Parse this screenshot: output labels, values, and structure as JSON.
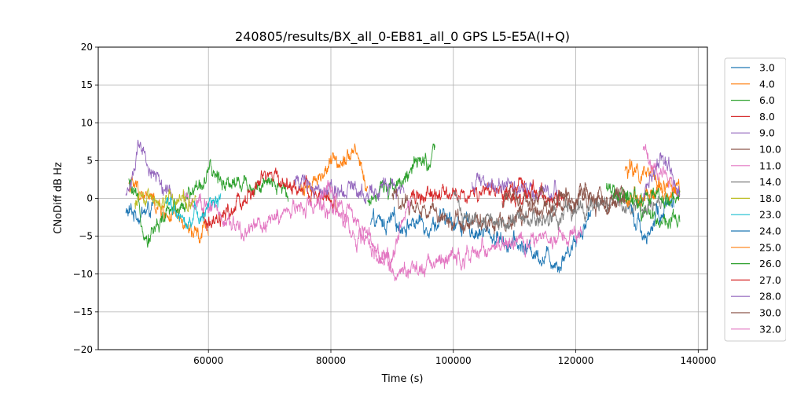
{
  "chart_data": {
    "type": "line",
    "title": "240805/results/BX_all_0-EB81_all_0 GPS L5-E5A(I+Q)",
    "xlabel": "Time (s)",
    "ylabel": "CNoDiff dB Hz",
    "xlim": [
      42000,
      141500
    ],
    "ylim": [
      -20,
      20
    ],
    "xticks": [
      60000,
      80000,
      100000,
      120000,
      140000
    ],
    "xtick_labels": [
      "60000",
      "80000",
      "100000",
      "120000",
      "140000"
    ],
    "yticks": [
      -20,
      -15,
      -10,
      -5,
      0,
      5,
      10,
      15,
      20
    ],
    "ytick_labels": [
      "−20",
      "−15",
      "−10",
      "−5",
      "0",
      "5",
      "10",
      "15",
      "20"
    ],
    "grid": true,
    "legend_position": "right, outside plot",
    "series": [
      {
        "name": "3.0",
        "color": "#1f77b4",
        "segments": [
          [
            46500,
            51000
          ],
          [
            86500,
            122500
          ]
        ],
        "x": [
          46500,
          50000,
          51000,
          86500,
          100000,
          117500,
          122500
        ],
        "y": [
          -2,
          -1.8,
          -1,
          -3.5,
          -3.0,
          -8.3,
          -2
        ]
      },
      {
        "name": "4.0",
        "color": "#ff7f0e",
        "segments": [
          [
            47000,
            60000
          ],
          [
            75000,
            86000
          ],
          [
            128000,
            137000
          ]
        ],
        "x": [
          47000,
          58500,
          60000,
          75000,
          84000,
          86000,
          128000,
          137000
        ],
        "y": [
          2,
          -5.5,
          -3.7,
          1,
          7,
          1,
          4,
          1
        ]
      },
      {
        "name": "6.0",
        "color": "#2ca02c",
        "segments": [
          [
            47000,
            73000
          ],
          [
            86000,
            97000
          ],
          [
            125000,
            137000
          ]
        ],
        "x": [
          47000,
          50000,
          60000,
          73000,
          86000,
          97000,
          125000,
          137000
        ],
        "y": [
          2,
          -4.8,
          3,
          1,
          0,
          5.5,
          1,
          -4
        ]
      },
      {
        "name": "8.0",
        "color": "#d62728",
        "segments": [
          [
            59000,
            81000
          ],
          [
            93000,
            112000
          ]
        ],
        "x": [
          59000,
          61000,
          70000,
          81000,
          93000,
          112000
        ],
        "y": [
          -3,
          -4,
          3,
          -1,
          0,
          1
        ]
      },
      {
        "name": "9.0",
        "color": "#9467bd",
        "segments": [
          [
            46500,
            54000
          ],
          [
            74000,
            92000
          ],
          [
            103000,
            117000
          ]
        ],
        "x": [
          46500,
          48500,
          54000,
          74000,
          92000,
          103000,
          117000
        ],
        "y": [
          0,
          6.2,
          0,
          2,
          1,
          2,
          1
        ]
      },
      {
        "name": "10.0",
        "color": "#8c564b",
        "segments": [
          [
            90000,
            128000
          ]
        ],
        "x": [
          90000,
          103000,
          128000
        ],
        "y": [
          0,
          -3.5,
          0
        ]
      },
      {
        "name": "11.0",
        "color": "#e377c2",
        "segments": [
          [
            56000,
            80000
          ],
          [
            80000,
            121000
          ],
          [
            131000,
            136500
          ]
        ],
        "x": [
          56000,
          66000,
          80000,
          90000,
          121000,
          131000,
          136500
        ],
        "y": [
          0,
          -4.5,
          1,
          -9.5,
          -4.8,
          6.2,
          1
        ]
      },
      {
        "name": "14.0",
        "color": "#7f7f7f",
        "segments": [
          [
            100000,
            134000
          ]
        ],
        "x": [
          100000,
          103000,
          134000
        ],
        "y": [
          0,
          -3.5,
          0
        ]
      },
      {
        "name": "18.0",
        "color": "#bcbd22",
        "segments": [
          [
            48000,
            58000
          ]
        ],
        "x": [
          48000,
          58000
        ],
        "y": [
          0,
          0
        ]
      },
      {
        "name": "23.0",
        "color": "#17becf",
        "segments": [
          [
            53000,
            62000
          ]
        ],
        "x": [
          53000,
          56000,
          62000
        ],
        "y": [
          0,
          -2.6,
          0
        ]
      },
      {
        "name": "24.0",
        "color": "#1f77b4",
        "segments": [
          [
            128000,
            136000
          ]
        ],
        "x": [
          128000,
          131000,
          136000
        ],
        "y": [
          0,
          -4.7,
          0
        ]
      },
      {
        "name": "25.0",
        "color": "#ff7f0e",
        "segments": [
          [
            128000,
            137000
          ]
        ],
        "x": [
          128000,
          137000
        ],
        "y": [
          0,
          1
        ]
      },
      {
        "name": "26.0",
        "color": "#2ca02c",
        "segments": [
          [
            126000,
            137000
          ]
        ],
        "x": [
          126000,
          137000
        ],
        "y": [
          0,
          0
        ]
      },
      {
        "name": "27.0",
        "color": "#d62728",
        "segments": [
          [
            108000,
            118000
          ]
        ],
        "x": [
          108000,
          118000
        ],
        "y": [
          0,
          0
        ]
      },
      {
        "name": "28.0",
        "color": "#9467bd",
        "segments": [
          [
            131000,
            137000
          ]
        ],
        "x": [
          131000,
          134500,
          137000
        ],
        "y": [
          0,
          6.3,
          0
        ]
      },
      {
        "name": "30.0",
        "color": "#8c564b",
        "segments": [
          [
            108000,
            128000
          ]
        ],
        "x": [
          108000,
          128000
        ],
        "y": [
          0,
          0
        ]
      },
      {
        "name": "32.0",
        "color": "#e377c2",
        "segments": [
          [
            78000,
            93000
          ]
        ],
        "x": [
          78000,
          89500,
          93000
        ],
        "y": [
          0,
          -9.5,
          0
        ]
      }
    ]
  }
}
